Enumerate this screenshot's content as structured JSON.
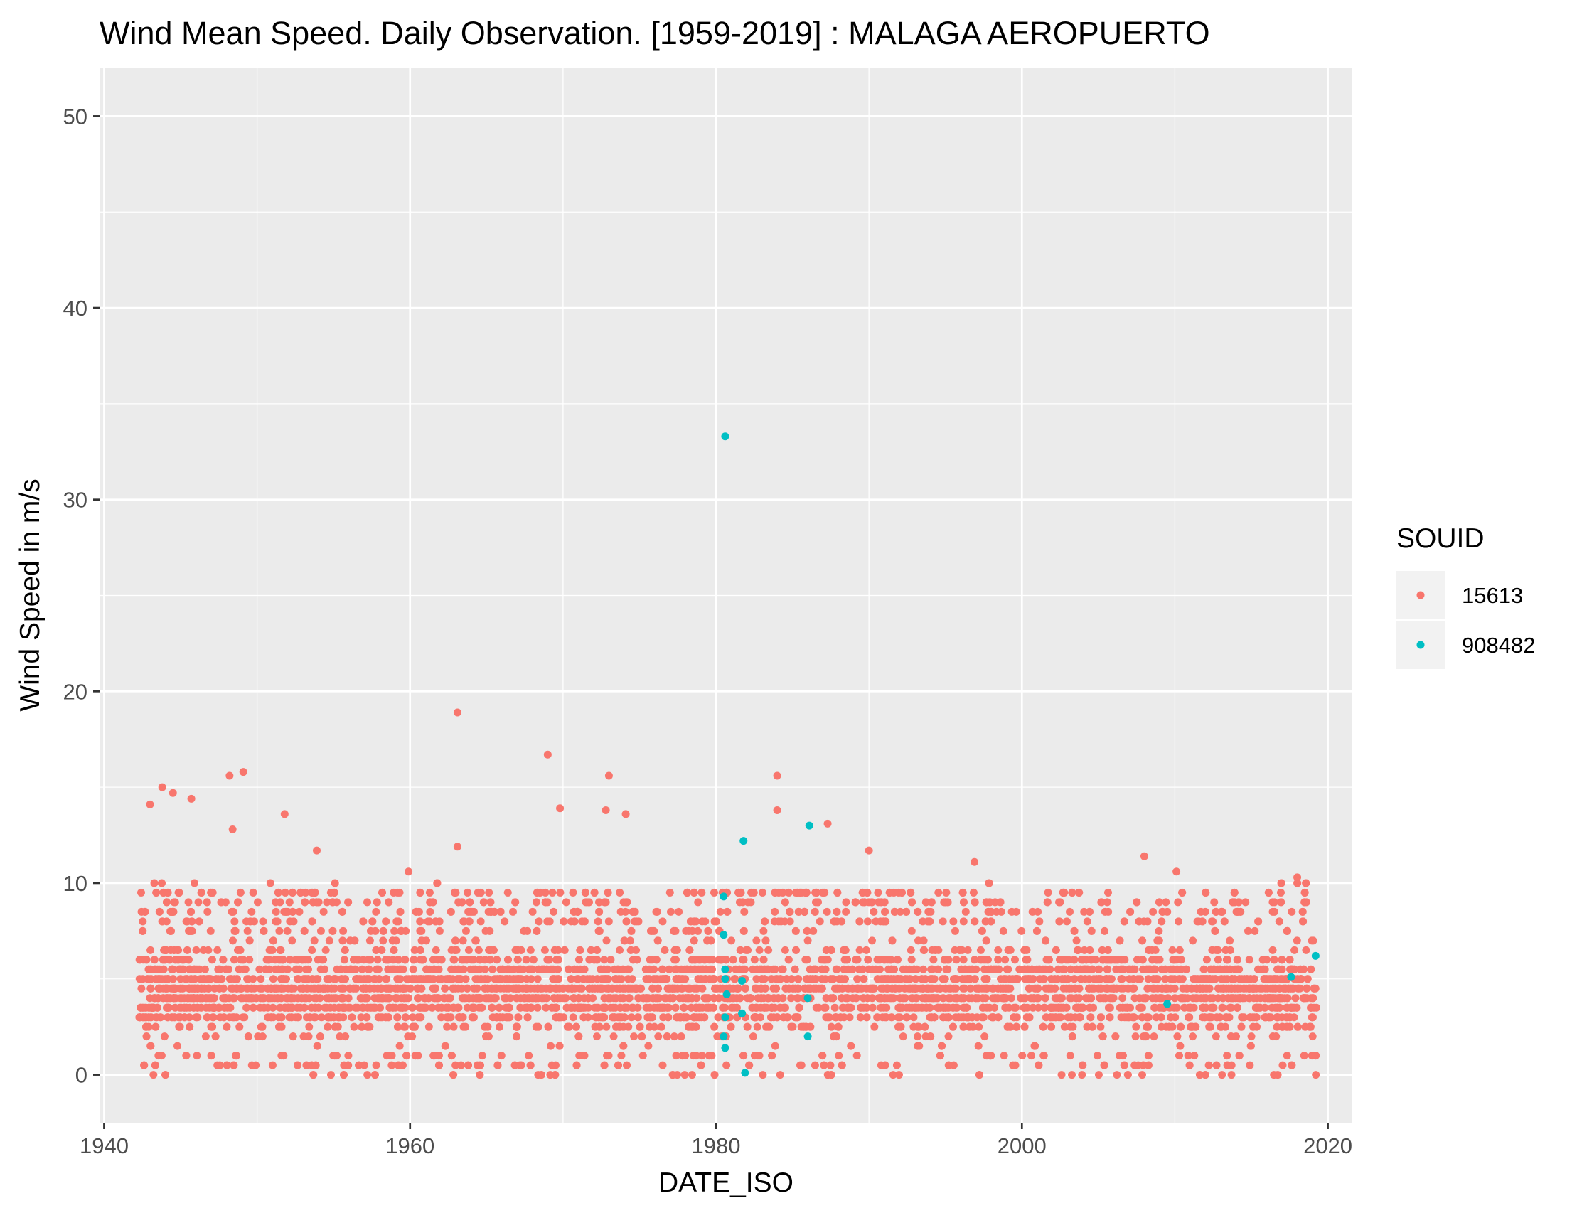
{
  "chart_data": {
    "type": "scatter",
    "title": "Wind Mean Speed. Daily Observation. [1959-2019] : MALAGA AEROPUERTO",
    "xlabel": "DATE_ISO",
    "ylabel": "Wind Speed in m/s",
    "xlim": [
      1939.7,
      2021.6
    ],
    "ylim": [
      -2.5,
      52.5
    ],
    "x_ticks": [
      1940,
      1960,
      1980,
      2000,
      2020
    ],
    "y_ticks": [
      0,
      10,
      20,
      30,
      40,
      50
    ],
    "x_tick_labels": [
      "1940",
      "1960",
      "1980",
      "2000",
      "2020"
    ],
    "y_tick_labels": [
      "0",
      "10",
      "20",
      "30",
      "40",
      "50"
    ],
    "grid": true,
    "legend": {
      "title": "SOUID",
      "position": "right",
      "entries": [
        {
          "label": "15613",
          "color": "#F8766D"
        },
        {
          "label": "908482",
          "color": "#00BFC4"
        }
      ]
    },
    "series": [
      {
        "name": "15613",
        "color": "#F8766D",
        "x_range": [
          1942.3,
          2019.3
        ],
        "typical_y_range": [
          1.0,
          7.5
        ],
        "outliers": [
          {
            "x": 1943.0,
            "y": 14.1
          },
          {
            "x": 1943.8,
            "y": 15.0
          },
          {
            "x": 1944.5,
            "y": 14.7
          },
          {
            "x": 1945.7,
            "y": 14.4
          },
          {
            "x": 1948.2,
            "y": 15.6
          },
          {
            "x": 1949.1,
            "y": 15.8
          },
          {
            "x": 1948.4,
            "y": 12.8
          },
          {
            "x": 1951.8,
            "y": 13.6
          },
          {
            "x": 1953.9,
            "y": 11.7
          },
          {
            "x": 1959.9,
            "y": 10.6
          },
          {
            "x": 1963.1,
            "y": 18.9
          },
          {
            "x": 1963.1,
            "y": 11.9
          },
          {
            "x": 1969.0,
            "y": 16.7
          },
          {
            "x": 1969.8,
            "y": 13.9
          },
          {
            "x": 1973.0,
            "y": 15.6
          },
          {
            "x": 1972.8,
            "y": 13.8
          },
          {
            "x": 1974.1,
            "y": 13.6
          },
          {
            "x": 1984.0,
            "y": 15.6
          },
          {
            "x": 1984.0,
            "y": 13.8
          },
          {
            "x": 1987.3,
            "y": 13.1
          },
          {
            "x": 1990.0,
            "y": 11.7
          },
          {
            "x": 1996.9,
            "y": 11.1
          },
          {
            "x": 2008.0,
            "y": 11.4
          },
          {
            "x": 2010.1,
            "y": 10.6
          },
          {
            "x": 2018.0,
            "y": 10.3
          },
          {
            "x": 2013.7,
            "y": 0.0
          }
        ]
      },
      {
        "name": "908482",
        "color": "#00BFC4",
        "points": [
          {
            "x": 1980.6,
            "y": 33.3
          },
          {
            "x": 1981.8,
            "y": 12.2
          },
          {
            "x": 1986.1,
            "y": 13.0
          },
          {
            "x": 1980.5,
            "y": 9.3
          },
          {
            "x": 1980.5,
            "y": 7.3
          },
          {
            "x": 1980.6,
            "y": 5.5
          },
          {
            "x": 1980.6,
            "y": 5.0
          },
          {
            "x": 1980.7,
            "y": 4.2
          },
          {
            "x": 1980.6,
            "y": 3.0
          },
          {
            "x": 1980.5,
            "y": 2.0
          },
          {
            "x": 1980.6,
            "y": 1.4
          },
          {
            "x": 1981.7,
            "y": 4.9
          },
          {
            "x": 1981.7,
            "y": 3.2
          },
          {
            "x": 1981.9,
            "y": 0.1
          },
          {
            "x": 1986.0,
            "y": 4.0
          },
          {
            "x": 1986.0,
            "y": 2.0
          },
          {
            "x": 2009.5,
            "y": 3.7
          },
          {
            "x": 2017.6,
            "y": 5.1
          },
          {
            "x": 2019.2,
            "y": 6.2
          }
        ]
      }
    ]
  }
}
